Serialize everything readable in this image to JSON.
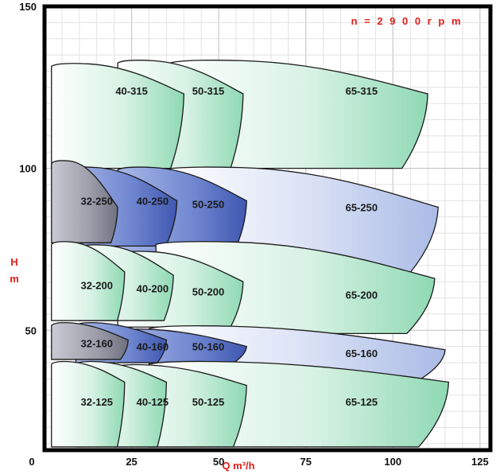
{
  "chart_data": {
    "type": "area",
    "title": "",
    "annotation": "n = 2 9 0 0 r p m",
    "xlabel": "Q m³/h",
    "ylabel": "H m",
    "ylabel_lines": [
      "H",
      "m"
    ],
    "xlim": [
      0,
      128
    ],
    "ylim": [
      13,
      150
    ],
    "x_ticks": [
      0,
      25,
      50,
      75,
      100,
      125
    ],
    "y_ticks": [
      50,
      100,
      150
    ],
    "grid": true,
    "legend": "none",
    "colors": {
      "green": "#8fd9b4",
      "blue": "#6f86d0",
      "lightblue": "#aabbe6",
      "gray": "#9a9ca8"
    },
    "series": [
      {
        "name": "65-315",
        "fill": "green",
        "q": [
          36,
          110
        ],
        "h_top": [
          133,
          123
        ],
        "h_bottom": [
          100,
          100
        ]
      },
      {
        "name": "50-315",
        "fill": "green",
        "q": [
          21,
          57
        ],
        "h_top": [
          133,
          123
        ],
        "h_bottom": [
          100,
          100
        ]
      },
      {
        "name": "40-315",
        "fill": "green",
        "q": [
          2,
          40
        ],
        "h_top": [
          132,
          123
        ],
        "h_bottom": [
          100,
          100
        ]
      },
      {
        "name": "65-250",
        "fill": "lightblue",
        "q": [
          34,
          113
        ],
        "h_top": [
          100,
          88
        ],
        "h_bottom": [
          68,
          68
        ]
      },
      {
        "name": "50-250",
        "fill": "blue",
        "q": [
          21,
          58
        ],
        "h_top": [
          100,
          90
        ],
        "h_bottom": [
          74,
          74
        ]
      },
      {
        "name": "40-250",
        "fill": "blue",
        "q": [
          6,
          38
        ],
        "h_top": [
          100,
          90
        ],
        "h_bottom": [
          76,
          76
        ]
      },
      {
        "name": "32-250",
        "fill": "gray",
        "q": [
          2,
          21
        ],
        "h_top": [
          102,
          88
        ],
        "h_bottom": [
          77,
          77
        ]
      },
      {
        "name": "65-200",
        "fill": "green",
        "q": [
          32,
          112
        ],
        "h_top": [
          77,
          66
        ],
        "h_bottom": [
          49,
          49
        ]
      },
      {
        "name": "50-200",
        "fill": "green",
        "q": [
          21,
          57
        ],
        "h_top": [
          74,
          65
        ],
        "h_bottom": [
          51,
          51
        ]
      },
      {
        "name": "40-200",
        "fill": "green",
        "q": [
          10,
          37
        ],
        "h_top": [
          76,
          67
        ],
        "h_bottom": [
          53,
          53
        ]
      },
      {
        "name": "32-200",
        "fill": "green",
        "q": [
          2,
          23
        ],
        "h_top": [
          77,
          68
        ],
        "h_bottom": [
          53,
          53
        ]
      },
      {
        "name": "65-160",
        "fill": "lightblue",
        "q": [
          30,
          115
        ],
        "h_top": [
          51,
          44
        ],
        "h_bottom": [
          34,
          34
        ]
      },
      {
        "name": "50-160",
        "fill": "blue",
        "q": [
          21,
          58
        ],
        "h_top": [
          50,
          45
        ],
        "h_bottom": [
          40,
          40
        ]
      },
      {
        "name": "40-160",
        "fill": "blue",
        "q": [
          9,
          35
        ],
        "h_top": [
          52,
          47
        ],
        "h_bottom": [
          40,
          40
        ]
      },
      {
        "name": "32-160",
        "fill": "gray",
        "q": [
          2,
          24
        ],
        "h_top": [
          52,
          47
        ],
        "h_bottom": [
          41,
          41
        ]
      },
      {
        "name": "65-125",
        "fill": "green",
        "q": [
          30,
          116
        ],
        "h_top": [
          40,
          34
        ],
        "h_bottom": [
          14,
          14
        ]
      },
      {
        "name": "50-125",
        "fill": "green",
        "q": [
          20,
          58
        ],
        "h_top": [
          39,
          33
        ],
        "h_bottom": [
          14,
          14
        ]
      },
      {
        "name": "40-125",
        "fill": "green",
        "q": [
          9,
          35
        ],
        "h_top": [
          40,
          34
        ],
        "h_bottom": [
          14,
          14
        ]
      },
      {
        "name": "32-125",
        "fill": "green",
        "q": [
          2,
          23
        ],
        "h_top": [
          40,
          34
        ],
        "h_bottom": [
          14,
          14
        ]
      }
    ],
    "label_points": [
      {
        "text": "40-315",
        "q": 25,
        "h": 124
      },
      {
        "text": "50-315",
        "q": 47,
        "h": 124
      },
      {
        "text": "65-315",
        "q": 91,
        "h": 124
      },
      {
        "text": "32-250",
        "q": 15,
        "h": 90
      },
      {
        "text": "40-250",
        "q": 31,
        "h": 90
      },
      {
        "text": "50-250",
        "q": 47,
        "h": 89
      },
      {
        "text": "65-250",
        "q": 91,
        "h": 88
      },
      {
        "text": "32-200",
        "q": 15,
        "h": 64
      },
      {
        "text": "40-200",
        "q": 31,
        "h": 63
      },
      {
        "text": "50-200",
        "q": 47,
        "h": 62
      },
      {
        "text": "65-200",
        "q": 91,
        "h": 61
      },
      {
        "text": "32-160",
        "q": 15,
        "h": 46
      },
      {
        "text": "40-160",
        "q": 31,
        "h": 45
      },
      {
        "text": "50-160",
        "q": 47,
        "h": 45
      },
      {
        "text": "65-160",
        "q": 91,
        "h": 43
      },
      {
        "text": "32-125",
        "q": 15,
        "h": 28
      },
      {
        "text": "40-125",
        "q": 31,
        "h": 28
      },
      {
        "text": "50-125",
        "q": 47,
        "h": 28
      },
      {
        "text": "65-125",
        "q": 91,
        "h": 28
      }
    ]
  }
}
